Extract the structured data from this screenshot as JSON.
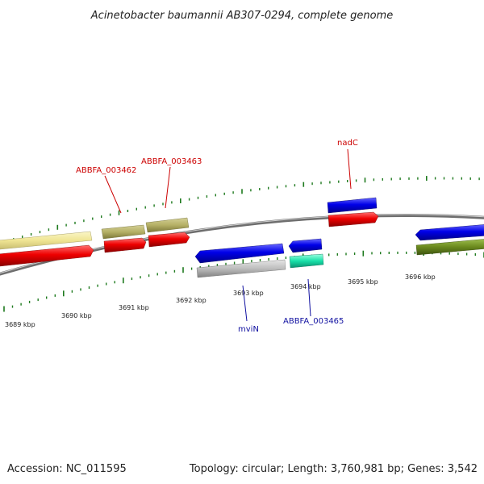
{
  "title": "Acinetobacter baumannii AB307-0294, complete genome",
  "footer": {
    "accession": "Accession: NC_011595",
    "summary": "Topology: circular; Length: 3,760,981 bp; Genes: 3,542"
  },
  "ticks": [
    "3689 kbp",
    "3690 kbp",
    "3691 kbp",
    "3692 kbp",
    "3693 kbp",
    "3694 kbp",
    "3695 kbp",
    "3696 kbp"
  ],
  "labels": {
    "g3462": "ABBFA_003462",
    "g3463": "ABBFA_003463",
    "nadC": "nadC",
    "mviN": "mviN",
    "g3465": "ABBFA_003465"
  },
  "colors": {
    "backbone": "#8c8c8c",
    "forward_cds": "#0000e0",
    "reverse_cds": "#e00000",
    "pale_gene": "#f2e89a",
    "khaki_gene": "#b8b46a",
    "grey_gene": "#bdbdbd",
    "teal_gene": "#20e0b0",
    "olive_gene": "#6b8a1e",
    "tick": "#1e7a1e",
    "label_red": "#cc0000",
    "label_blue": "#1010a0"
  }
}
